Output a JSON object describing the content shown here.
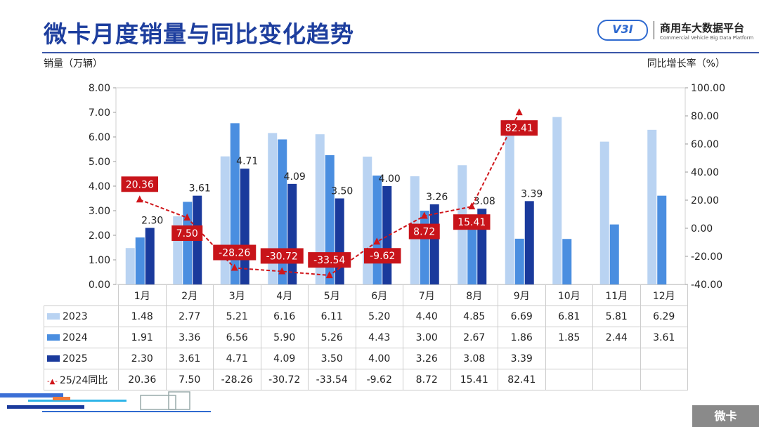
{
  "header": {
    "title": "微卡月度销量与同比变化趋势",
    "logo_mark": "V3I",
    "logo_name": "商用车大数据平台",
    "logo_sub": "Commercial Vehicle Big Data Platform"
  },
  "footer": {
    "tag": "微卡"
  },
  "chart_data": {
    "type": "bar+line",
    "ylabel_left": "销量（万辆）",
    "ylabel_right": "同比增长率（%）",
    "ylim_left": [
      0,
      8
    ],
    "yticks_left": [
      "0.00",
      "1.00",
      "2.00",
      "3.00",
      "4.00",
      "5.00",
      "6.00",
      "7.00",
      "8.00"
    ],
    "ylim_right": [
      -40,
      100
    ],
    "yticks_right": [
      "-40.00",
      "-20.00",
      "0.00",
      "20.00",
      "40.00",
      "60.00",
      "80.00",
      "100.00"
    ],
    "categories": [
      "1月",
      "2月",
      "3月",
      "4月",
      "5月",
      "6月",
      "7月",
      "8月",
      "9月",
      "10月",
      "11月",
      "12月"
    ],
    "series": [
      {
        "name": "2023",
        "type": "bar",
        "color": "#b9d3f2",
        "values": [
          1.48,
          2.77,
          5.21,
          6.16,
          6.11,
          5.2,
          4.4,
          4.85,
          6.69,
          6.81,
          5.81,
          6.29
        ]
      },
      {
        "name": "2024",
        "type": "bar",
        "color": "#4a8ee0",
        "values": [
          1.91,
          3.36,
          6.56,
          5.9,
          5.26,
          4.43,
          3.0,
          2.67,
          1.86,
          1.85,
          2.44,
          3.61
        ]
      },
      {
        "name": "2025",
        "type": "bar",
        "color": "#1a3a9c",
        "values": [
          2.3,
          3.61,
          4.71,
          4.09,
          3.5,
          4.0,
          3.26,
          3.08,
          3.39,
          null,
          null,
          null
        ]
      },
      {
        "name": "25/24同比",
        "type": "line",
        "axis": "right",
        "color": "#d0161b",
        "values": [
          20.36,
          7.5,
          -28.26,
          -30.72,
          -33.54,
          -9.62,
          8.72,
          15.41,
          82.41,
          null,
          null,
          null
        ]
      }
    ],
    "data_labels": "2025 bars and 25/24同比 line",
    "legend": "data table below chart"
  }
}
